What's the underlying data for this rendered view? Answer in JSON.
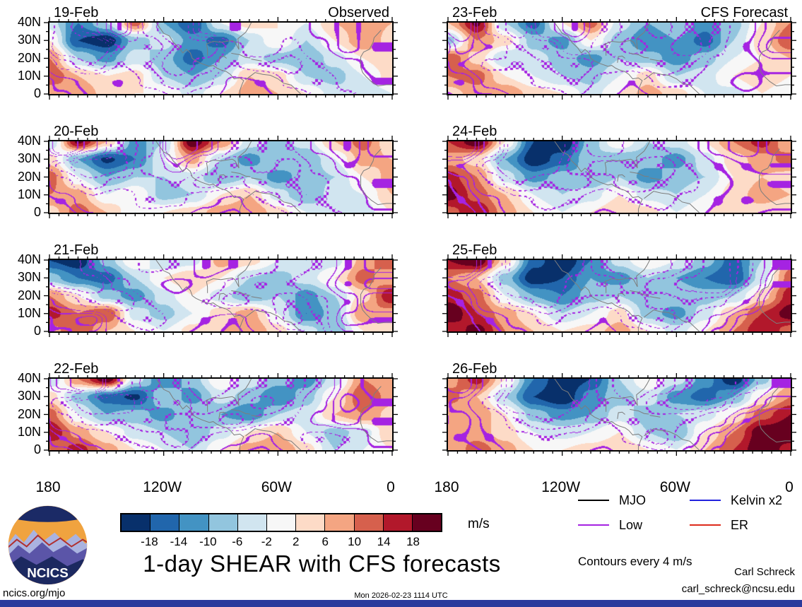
{
  "title": "1-day SHEAR with CFS forecasts",
  "logo": {
    "text": "NCICS"
  },
  "footer": {
    "site_url": "ncics.org/mjo",
    "timestamp": "Mon 2026-02-23 1114 UTC",
    "credit_name": "Carl Schreck",
    "credit_email": "carl_schreck@ncsu.edu",
    "contours_note": "Contours every 4 m/s"
  },
  "legend": {
    "columns": [
      [
        {
          "label": "MJO",
          "color": "#000000"
        },
        {
          "label": "Low",
          "color": "#a523e2"
        }
      ],
      [
        {
          "label": "Kelvin x2",
          "color": "#2222dd"
        },
        {
          "label": "ER",
          "color": "#dd2b1c"
        }
      ]
    ]
  },
  "chart_data": {
    "type": "heatmap",
    "units": "m/s",
    "note": "Shear anomaly fields estimated from the figure on a coarse grid; rows run 40N to 0, columns 180 to 0 longitude (15 deg steps).",
    "colorbar": {
      "ticks": [
        -18,
        -14,
        -10,
        -6,
        -2,
        2,
        6,
        10,
        14,
        18
      ],
      "colors": [
        "#08306b",
        "#2166ac",
        "#4393c3",
        "#92c5de",
        "#d1e5f0",
        "#f7f7f7",
        "#fddbc7",
        "#f4a582",
        "#d6604d",
        "#b2182b",
        "#67001f"
      ],
      "label": "m/s"
    },
    "x": {
      "ticks": [
        "180",
        "120W",
        "60W",
        "0"
      ],
      "range_deg_west": [
        180,
        0
      ]
    },
    "y": {
      "ticks": [
        "40N",
        "30N",
        "20N",
        "10N",
        "0"
      ],
      "range_deg_north": [
        40,
        0
      ]
    },
    "contour_overlay_levels": [
      -12,
      -8,
      -4,
      4,
      8,
      12
    ],
    "columns": [
      {
        "title": "Observed",
        "panels": [
          {
            "date": "19-Feb",
            "grid": [
              [
                -4,
                -14,
                -6,
                12,
                -10,
                -18,
                -2,
                4,
                2,
                -2,
                6,
                9,
                6
              ],
              [
                2,
                -18,
                -21,
                -8,
                -4,
                -12,
                -16,
                -6,
                2,
                -6,
                2,
                10,
                4
              ],
              [
                10,
                -6,
                -12,
                -4,
                -8,
                -16,
                -10,
                -4,
                -8,
                -10,
                -4,
                2,
                6
              ],
              [
                14,
                6,
                2,
                4,
                -6,
                -10,
                -6,
                6,
                4,
                -6,
                -8,
                -2,
                4
              ],
              [
                6,
                10,
                4,
                2,
                2,
                -4,
                2,
                8,
                6,
                2,
                -4,
                -6,
                -2
              ]
            ]
          },
          {
            "date": "20-Feb",
            "grid": [
              [
                -6,
                19,
                6,
                -12,
                -6,
                21,
                10,
                -4,
                -8,
                -4,
                6,
                12,
                2
              ],
              [
                4,
                -10,
                -19,
                -14,
                -2,
                8,
                -6,
                -12,
                -6,
                -10,
                -2,
                8,
                6
              ],
              [
                12,
                -2,
                -10,
                -6,
                -6,
                -4,
                -10,
                -6,
                -12,
                -8,
                -6,
                2,
                8
              ],
              [
                10,
                8,
                -2,
                2,
                -8,
                -6,
                2,
                6,
                -4,
                -10,
                -4,
                -2,
                6
              ],
              [
                4,
                12,
                6,
                -2,
                2,
                4,
                8,
                10,
                4,
                -2,
                -6,
                -4,
                2
              ]
            ]
          },
          {
            "date": "21-Feb",
            "grid": [
              [
                -18,
                -21,
                -8,
                2,
                -6,
                -4,
                8,
                4,
                -2,
                -6,
                -4,
                8,
                14
              ],
              [
                -8,
                -14,
                -16,
                -6,
                2,
                6,
                2,
                -6,
                -8,
                -4,
                2,
                12,
                6
              ],
              [
                10,
                2,
                -8,
                -12,
                -4,
                2,
                -4,
                -10,
                -6,
                -12,
                -6,
                4,
                18
              ],
              [
                16,
                10,
                14,
                -4,
                -8,
                -2,
                4,
                8,
                -2,
                -14,
                -8,
                10,
                8
              ],
              [
                8,
                14,
                6,
                2,
                -2,
                4,
                6,
                10,
                4,
                -4,
                -10,
                2,
                4
              ]
            ]
          },
          {
            "date": "22-Feb",
            "grid": [
              [
                -6,
                10,
                21,
                -4,
                -14,
                -8,
                2,
                -4,
                -8,
                -12,
                -4,
                10,
                6
              ],
              [
                4,
                -8,
                -16,
                -19,
                -6,
                -12,
                -4,
                -8,
                -14,
                -8,
                2,
                14,
                8
              ],
              [
                12,
                -2,
                -10,
                -8,
                -12,
                -6,
                -10,
                -14,
                -6,
                -4,
                6,
                10,
                4
              ],
              [
                18,
                8,
                2,
                -4,
                -6,
                -10,
                -4,
                2,
                6,
                -2,
                -8,
                -4,
                6
              ],
              [
                10,
                16,
                8,
                2,
                -2,
                -6,
                2,
                8,
                10,
                4,
                -6,
                -2,
                2
              ]
            ]
          }
        ]
      },
      {
        "title": "CFS Forecast",
        "panels": [
          {
            "date": "23-Feb",
            "grid": [
              [
                6,
                19,
                -6,
                -16,
                2,
                12,
                -4,
                -10,
                -6,
                -12,
                -8,
                2,
                10
              ],
              [
                -8,
                10,
                4,
                -8,
                -12,
                2,
                -8,
                -14,
                -10,
                -16,
                -6,
                4,
                14
              ],
              [
                14,
                4,
                -6,
                -4,
                -8,
                -12,
                -6,
                -8,
                -12,
                -8,
                -2,
                2,
                6
              ],
              [
                10,
                12,
                2,
                -2,
                -6,
                -8,
                -2,
                4,
                -6,
                -4,
                2,
                6,
                2
              ],
              [
                4,
                8,
                10,
                4,
                2,
                -4,
                2,
                8,
                4,
                -2,
                -4,
                2,
                -2
              ]
            ]
          },
          {
            "date": "24-Feb",
            "grid": [
              [
                14,
                21,
                2,
                -18,
                -22,
                -8,
                2,
                -6,
                -4,
                2,
                10,
                16,
                6
              ],
              [
                8,
                4,
                -10,
                -21,
                -16,
                -6,
                -10,
                -8,
                -12,
                -4,
                4,
                8,
                12
              ],
              [
                16,
                10,
                -4,
                -12,
                -8,
                -10,
                -6,
                -12,
                -8,
                -6,
                2,
                6,
                4
              ],
              [
                20,
                12,
                6,
                -2,
                -6,
                -4,
                2,
                -4,
                -6,
                -2,
                4,
                8,
                6
              ],
              [
                12,
                18,
                8,
                2,
                -2,
                2,
                6,
                4,
                -2,
                2,
                6,
                4,
                2
              ]
            ]
          },
          {
            "date": "25-Feb",
            "grid": [
              [
                18,
                22,
                4,
                -16,
                -22,
                -14,
                -4,
                2,
                -2,
                -8,
                -16,
                -6,
                8
              ],
              [
                10,
                6,
                -8,
                -21,
                -18,
                -10,
                -12,
                -6,
                -10,
                -14,
                -18,
                -4,
                12
              ],
              [
                16,
                12,
                -2,
                -10,
                -14,
                -8,
                -6,
                -10,
                -6,
                -8,
                -6,
                4,
                16
              ],
              [
                22,
                14,
                8,
                2,
                -6,
                -2,
                4,
                -8,
                -12,
                -4,
                6,
                14,
                20
              ],
              [
                14,
                20,
                10,
                6,
                2,
                4,
                8,
                2,
                -4,
                2,
                10,
                18,
                12
              ]
            ]
          },
          {
            "date": "26-Feb",
            "grid": [
              [
                8,
                16,
                2,
                -14,
                -22,
                -18,
                -6,
                2,
                -4,
                -12,
                -21,
                -8,
                4
              ],
              [
                12,
                6,
                -6,
                -18,
                -22,
                -12,
                -8,
                -4,
                -12,
                -16,
                -10,
                2,
                10
              ],
              [
                6,
                10,
                2,
                -8,
                -12,
                -10,
                -4,
                -8,
                -6,
                -4,
                2,
                12,
                18
              ],
              [
                10,
                8,
                4,
                -2,
                -4,
                -2,
                2,
                -6,
                -10,
                2,
                10,
                21,
                22
              ],
              [
                6,
                12,
                8,
                2,
                2,
                4,
                6,
                2,
                -2,
                6,
                14,
                22,
                16
              ]
            ]
          }
        ]
      }
    ]
  }
}
